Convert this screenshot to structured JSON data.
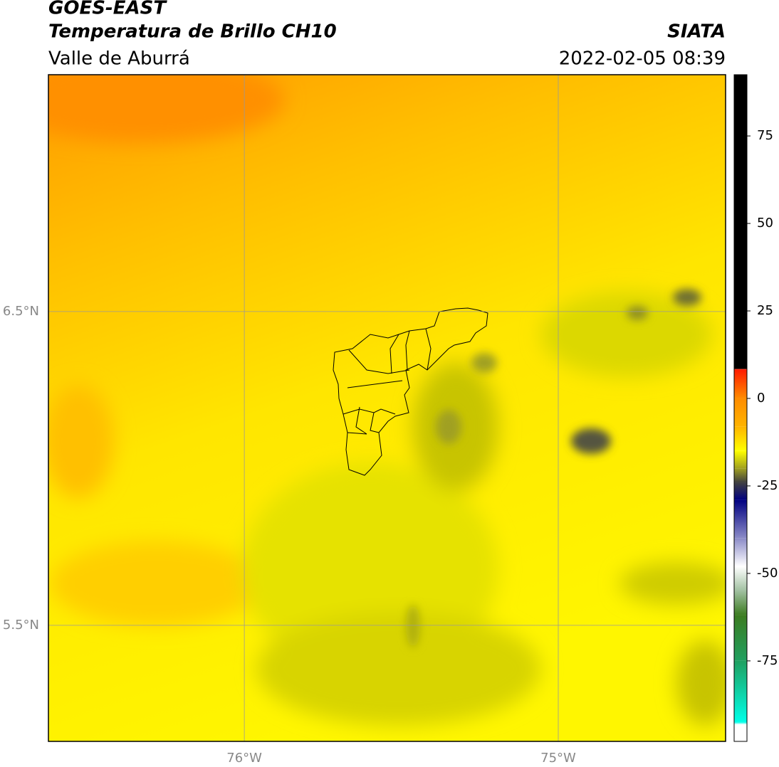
{
  "header": {
    "title": "GOES-EAST",
    "subtitle": "Temperatura de Brillo CH10",
    "source": "SIATA",
    "region": "Valle de Aburrá",
    "timestamp": "2022-02-05 08:39"
  },
  "chart_data": {
    "type": "map",
    "xlim": [
      -76.624,
      -74.467
    ],
    "ylim": [
      5.13,
      7.255
    ],
    "xticks": [
      {
        "value": -76,
        "label": "76°W"
      },
      {
        "value": -75,
        "label": "75°W"
      }
    ],
    "yticks": [
      {
        "value": 6.5,
        "label": "6.5°N"
      },
      {
        "value": 5.5,
        "label": "5.5°N"
      }
    ],
    "grid": true,
    "colorbar": {
      "lim": [
        -98,
        92.5
      ],
      "ticks": [
        75,
        50,
        25,
        0,
        -25,
        -50,
        -75
      ],
      "colormap": [
        {
          "value": 92.5,
          "color": "#000000"
        },
        {
          "value": 8.5,
          "color": "#000000"
        },
        {
          "value": 8.3,
          "color": "#ff1a00"
        },
        {
          "value": 0,
          "color": "#ff8c00"
        },
        {
          "value": -8,
          "color": "#ffb400"
        },
        {
          "value": -15,
          "color": "#ffff00"
        },
        {
          "value": -20,
          "color": "#a0a020"
        },
        {
          "value": -24,
          "color": "#404040"
        },
        {
          "value": -29,
          "color": "#000080"
        },
        {
          "value": -40,
          "color": "#8c8cc8"
        },
        {
          "value": -48,
          "color": "#ffffff"
        },
        {
          "value": -55,
          "color": "#a0c0a0"
        },
        {
          "value": -62,
          "color": "#3c7c20"
        },
        {
          "value": -75,
          "color": "#20a060"
        },
        {
          "value": -92.5,
          "color": "#00ffe8"
        },
        {
          "value": -93.2,
          "color": "#ffffff"
        },
        {
          "value": -98,
          "color": "#ffffff"
        }
      ]
    }
  }
}
